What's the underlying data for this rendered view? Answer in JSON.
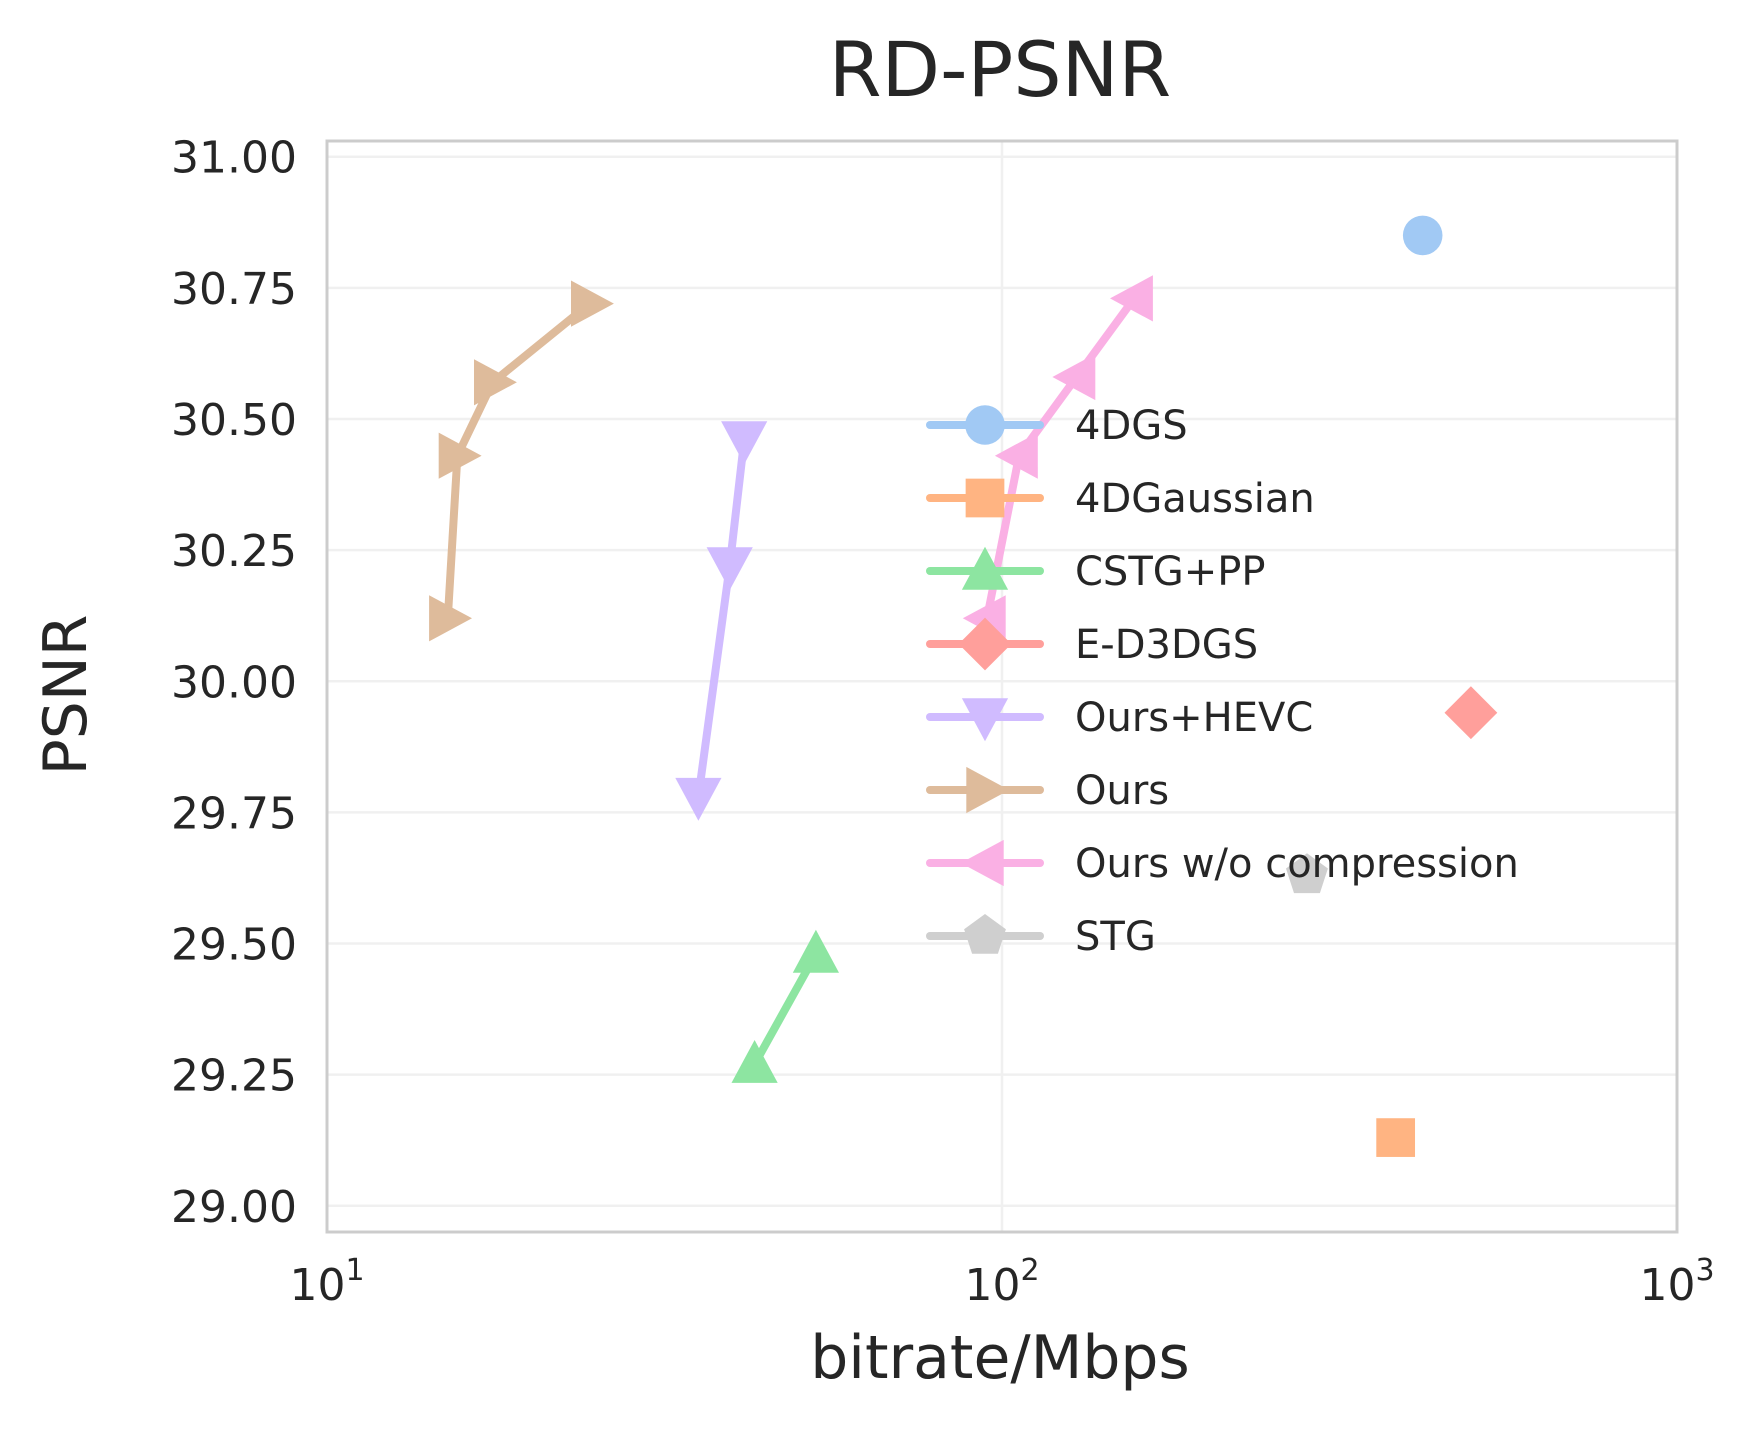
{
  "chart_data": {
    "type": "line",
    "title": "RD-PSNR",
    "xlabel": "bitrate/Mbps",
    "ylabel": "PSNR",
    "xscale": "log",
    "xlim": [
      10,
      1000
    ],
    "ylim": [
      28.95,
      31.03
    ],
    "x_ticks": [
      {
        "value": 10,
        "base": "10",
        "exp": "1"
      },
      {
        "value": 100,
        "base": "10",
        "exp": "2"
      },
      {
        "value": 1000,
        "base": "10",
        "exp": "3"
      }
    ],
    "y_ticks": [
      {
        "value": 29.0,
        "label": "29.00"
      },
      {
        "value": 29.25,
        "label": "29.25"
      },
      {
        "value": 29.5,
        "label": "29.50"
      },
      {
        "value": 29.75,
        "label": "29.75"
      },
      {
        "value": 30.0,
        "label": "30.00"
      },
      {
        "value": 30.25,
        "label": "30.25"
      },
      {
        "value": 30.5,
        "label": "30.50"
      },
      {
        "value": 30.75,
        "label": "30.75"
      },
      {
        "value": 31.0,
        "label": "31.00"
      }
    ],
    "grid": true,
    "legend_position": "center-right",
    "series": [
      {
        "name": "4DGS",
        "color": "#a1c9f4",
        "marker": "circle",
        "points": [
          {
            "x": 420,
            "y": 30.85
          }
        ]
      },
      {
        "name": "4DGaussian",
        "color": "#ffb482",
        "marker": "square",
        "points": [
          {
            "x": 383,
            "y": 29.13
          }
        ]
      },
      {
        "name": "CSTG+PP",
        "color": "#8de5a1",
        "marker": "triangle-up",
        "points": [
          {
            "x": 43,
            "y": 29.27
          },
          {
            "x": 53,
            "y": 29.48
          }
        ]
      },
      {
        "name": "E-D3DGS",
        "color": "#ff9f9b",
        "marker": "diamond",
        "points": [
          {
            "x": 495,
            "y": 29.94
          }
        ]
      },
      {
        "name": "Ours+HEVC",
        "color": "#d0bbff",
        "marker": "triangle-down",
        "points": [
          {
            "x": 35.5,
            "y": 29.78
          },
          {
            "x": 39.5,
            "y": 30.22
          },
          {
            "x": 41.5,
            "y": 30.46
          }
        ]
      },
      {
        "name": "Ours",
        "color": "#debb9b",
        "marker": "triangle-right",
        "points": [
          {
            "x": 15.1,
            "y": 30.12
          },
          {
            "x": 15.6,
            "y": 30.43
          },
          {
            "x": 17.6,
            "y": 30.57
          },
          {
            "x": 24.5,
            "y": 30.72
          }
        ]
      },
      {
        "name": "Ours w/o compression",
        "color": "#fab0e4",
        "marker": "triangle-left",
        "points": [
          {
            "x": 95,
            "y": 30.12
          },
          {
            "x": 106,
            "y": 30.43
          },
          {
            "x": 129,
            "y": 30.58
          },
          {
            "x": 157,
            "y": 30.73
          }
        ]
      },
      {
        "name": "STG",
        "color": "#cfcfcf",
        "marker": "pentagon",
        "points": [
          {
            "x": 283,
            "y": 29.63
          }
        ]
      }
    ]
  }
}
